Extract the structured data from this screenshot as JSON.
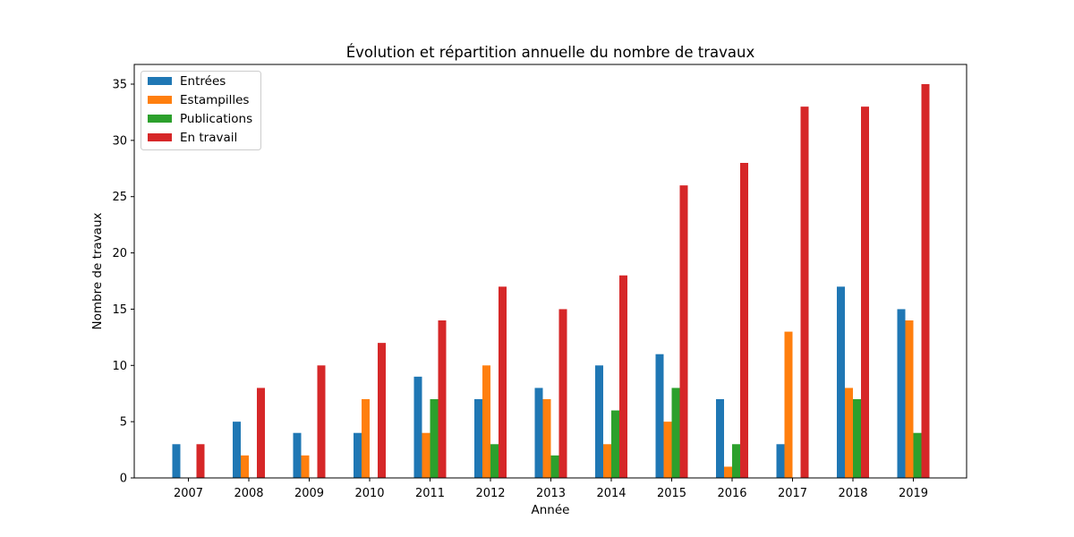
{
  "chart_data": {
    "type": "bar",
    "title": "Évolution et répartition annuelle du nombre de travaux",
    "xlabel": "Année",
    "ylabel": "Nombre de travaux",
    "categories": [
      "2007",
      "2008",
      "2009",
      "2010",
      "2011",
      "2012",
      "2013",
      "2014",
      "2015",
      "2016",
      "2017",
      "2018",
      "2019"
    ],
    "ylim": [
      0,
      36.75
    ],
    "yticks": [
      0,
      5,
      10,
      15,
      20,
      25,
      30,
      35
    ],
    "grid": false,
    "legend_position": "top-left",
    "series": [
      {
        "name": "Entrées",
        "color": "#1f77b4",
        "values": [
          3,
          5,
          4,
          4,
          9,
          7,
          8,
          10,
          11,
          7,
          3,
          17,
          15
        ]
      },
      {
        "name": "Estampilles",
        "color": "#ff7f0e",
        "values": [
          0,
          2,
          2,
          7,
          4,
          10,
          7,
          3,
          5,
          1,
          13,
          8,
          14
        ]
      },
      {
        "name": "Publications",
        "color": "#2ca02c",
        "values": [
          0,
          0,
          0,
          0,
          7,
          3,
          2,
          6,
          8,
          3,
          0,
          7,
          4
        ]
      },
      {
        "name": "En travail",
        "color": "#d62728",
        "values": [
          3,
          8,
          10,
          12,
          14,
          17,
          15,
          18,
          26,
          28,
          33,
          33,
          35
        ]
      }
    ]
  }
}
